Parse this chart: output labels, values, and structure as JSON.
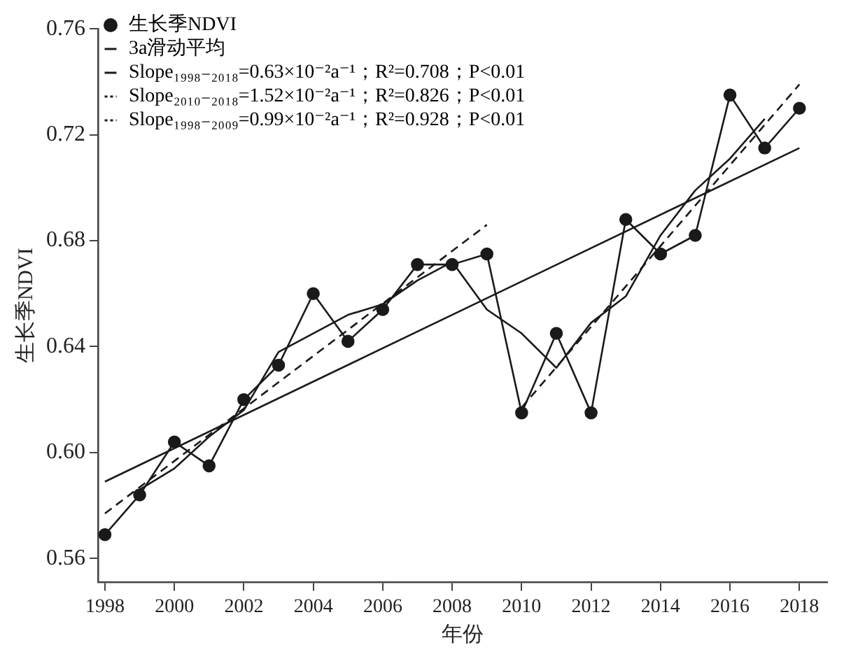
{
  "chart_data": {
    "type": "line",
    "xlabel": "年份",
    "ylabel": "生长季NDVI",
    "xlim": [
      1997.8,
      2018.8
    ],
    "xticks": [
      1998,
      2000,
      2002,
      2004,
      2006,
      2008,
      2010,
      2012,
      2014,
      2016,
      2018
    ],
    "ylim": [
      0.551,
      0.76
    ],
    "yticks": [
      {
        "value": 0.56,
        "label": "0.56"
      },
      {
        "value": 0.6,
        "label": "0.60"
      },
      {
        "value": 0.64,
        "label": "0.64"
      },
      {
        "value": 0.68,
        "label": "0.68"
      },
      {
        "value": 0.72,
        "label": "0.72"
      },
      {
        "value": 0.76,
        "label": "0.76"
      }
    ],
    "grid": false,
    "legend": "top left",
    "series": [
      {
        "name": "生长季NDVI",
        "color": "#1a1a1a",
        "marker": "circle",
        "line_style": "solid",
        "x": [
          1998,
          1999,
          2000,
          2001,
          2002,
          2003,
          2004,
          2005,
          2006,
          2007,
          2008,
          2009,
          2010,
          2011,
          2012,
          2013,
          2014,
          2015,
          2016,
          2017,
          2018
        ],
        "values": [
          0.569,
          0.584,
          0.604,
          0.595,
          0.62,
          0.633,
          0.66,
          0.642,
          0.654,
          0.671,
          0.671,
          0.675,
          0.615,
          0.645,
          0.615,
          0.688,
          0.675,
          0.682,
          0.735,
          0.715,
          0.73
        ]
      },
      {
        "name": "3a滑动平均",
        "color": "#1a1a1a",
        "marker": "none",
        "line_style": "solid",
        "x": [
          1999,
          2000,
          2001,
          2002,
          2003,
          2004,
          2005,
          2006,
          2007,
          2008,
          2009,
          2010,
          2011,
          2012,
          2013,
          2014,
          2015,
          2016,
          2017
        ],
        "values": [
          0.586,
          0.594,
          0.606,
          0.616,
          0.638,
          0.645,
          0.652,
          0.656,
          0.665,
          0.672,
          0.654,
          0.645,
          0.632,
          0.649,
          0.659,
          0.682,
          0.699,
          0.711,
          0.726
        ]
      },
      {
        "name": "Slope₁₉₉₈₋₂₀₁₈=0.63×10⁻²a⁻¹；R²=0.708；P<0.01",
        "color": "#1a1a1a",
        "marker": "none",
        "line_style": "solid",
        "x": [
          1998,
          2018
        ],
        "values": [
          0.589,
          0.715
        ]
      },
      {
        "name": "Slope₂₀₁₀₋₂₀₁₈=1.52×10⁻²a⁻¹；R²=0.826；P<0.01",
        "color": "#1a1a1a",
        "marker": "none",
        "line_style": "dashed",
        "x": [
          2010,
          2018
        ],
        "values": [
          0.617,
          0.739
        ]
      },
      {
        "name": "Slope₁₉₉₈₋₂₀₀₉=0.99×10⁻²a⁻¹；R²=0.928；P<0.01",
        "color": "#1a1a1a",
        "marker": "none",
        "line_style": "dashed",
        "x": [
          1998,
          2009
        ],
        "values": [
          0.577,
          0.686
        ]
      }
    ]
  }
}
